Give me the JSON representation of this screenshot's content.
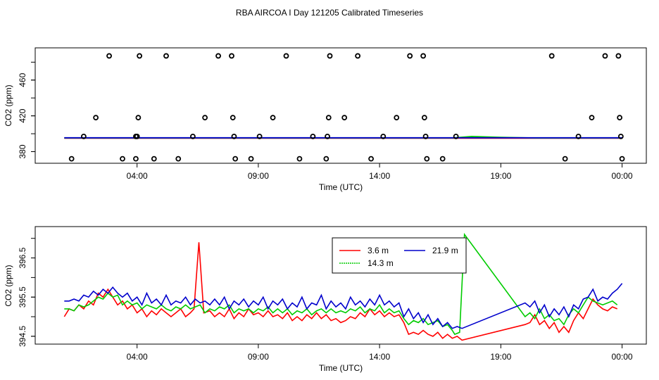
{
  "title": "RBA AIRCOA I  Day 121205  Calibrated Timeseries",
  "chart_data": [
    {
      "type": "scatter",
      "title": "",
      "xlabel": "Time (UTC)",
      "ylabel": "CO2 (ppm)",
      "x_ticks": [
        "04:00",
        "09:00",
        "14:00",
        "19:00",
        "00:00"
      ],
      "y_ticks": [
        380,
        420,
        460
      ],
      "xlim_hours": [
        -0.2,
        25.0
      ],
      "ylim": [
        367,
        496
      ],
      "grid": false,
      "flag_points": [
        {
          "t": 1.3,
          "co2": 372
        },
        {
          "t": 1.8,
          "co2": 397
        },
        {
          "t": 2.3,
          "co2": 418
        },
        {
          "t": 2.85,
          "co2": 487
        },
        {
          "t": 3.4,
          "co2": 372
        },
        {
          "t": 3.95,
          "co2": 397
        },
        {
          "t": 4.7,
          "co2": 372
        },
        {
          "t": 3.95,
          "co2": 372
        },
        {
          "t": 4.0,
          "co2": 397
        },
        {
          "t": 4.05,
          "co2": 418
        },
        {
          "t": 4.1,
          "co2": 487
        },
        {
          "t": 5.2,
          "co2": 487
        },
        {
          "t": 5.7,
          "co2": 372
        },
        {
          "t": 6.3,
          "co2": 397
        },
        {
          "t": 6.8,
          "co2": 418
        },
        {
          "t": 7.35,
          "co2": 487
        },
        {
          "t": 7.9,
          "co2": 487
        },
        {
          "t": 7.95,
          "co2": 418
        },
        {
          "t": 8.0,
          "co2": 397
        },
        {
          "t": 8.05,
          "co2": 372
        },
        {
          "t": 8.7,
          "co2": 372
        },
        {
          "t": 9.05,
          "co2": 397
        },
        {
          "t": 9.6,
          "co2": 418
        },
        {
          "t": 10.15,
          "co2": 487
        },
        {
          "t": 10.7,
          "co2": 372
        },
        {
          "t": 11.25,
          "co2": 397
        },
        {
          "t": 11.8,
          "co2": 372
        },
        {
          "t": 11.85,
          "co2": 397
        },
        {
          "t": 11.9,
          "co2": 418
        },
        {
          "t": 11.95,
          "co2": 487
        },
        {
          "t": 12.55,
          "co2": 418
        },
        {
          "t": 13.1,
          "co2": 487
        },
        {
          "t": 13.65,
          "co2": 372
        },
        {
          "t": 14.15,
          "co2": 397
        },
        {
          "t": 14.7,
          "co2": 418
        },
        {
          "t": 15.25,
          "co2": 487
        },
        {
          "t": 15.8,
          "co2": 487
        },
        {
          "t": 15.85,
          "co2": 418
        },
        {
          "t": 15.9,
          "co2": 397
        },
        {
          "t": 15.95,
          "co2": 372
        },
        {
          "t": 16.6,
          "co2": 372
        },
        {
          "t": 17.15,
          "co2": 397
        },
        {
          "t": 21.1,
          "co2": 487
        },
        {
          "t": 21.65,
          "co2": 372
        },
        {
          "t": 22.2,
          "co2": 397
        },
        {
          "t": 22.75,
          "co2": 418
        },
        {
          "t": 23.3,
          "co2": 487
        },
        {
          "t": 23.85,
          "co2": 487
        },
        {
          "t": 23.9,
          "co2": 418
        },
        {
          "t": 23.95,
          "co2": 397
        },
        {
          "t": 24.0,
          "co2": 372
        }
      ],
      "series": [
        {
          "label_key": "legend.s1",
          "color": "#ff0000",
          "t": [
            1.0,
            24.0
          ],
          "co2": [
            395.1,
            395.1
          ]
        },
        {
          "label_key": "legend.s2",
          "color": "#00cc00",
          "t": [
            1.0,
            17.0,
            17.8,
            19.0,
            20.5,
            24.0
          ],
          "co2": [
            395.3,
            395.3,
            397.0,
            396.0,
            395.2,
            395.3
          ]
        },
        {
          "label_key": "legend.s3",
          "color": "#0000cc",
          "t": [
            1.0,
            24.0
          ],
          "co2": [
            395.5,
            395.5
          ]
        }
      ]
    },
    {
      "type": "line",
      "title": "",
      "xlabel": "Time (UTC)",
      "ylabel": "CO2 (ppm)",
      "x_ticks": [
        "04:00",
        "09:00",
        "14:00",
        "19:00",
        "00:00"
      ],
      "y_ticks": [
        394.5,
        395.5,
        396.5
      ],
      "xlim_hours": [
        -0.2,
        25.0
      ],
      "ylim": [
        394.3,
        397.3
      ],
      "grid": false,
      "legend_position": "top-center",
      "series": [
        {
          "name_key": "legend.s1",
          "color": "#ff0000",
          "t": [
            1.0,
            1.2,
            1.4,
            1.6,
            1.8,
            2.0,
            2.2,
            2.4,
            2.6,
            2.8,
            3.0,
            3.2,
            3.4,
            3.6,
            3.8,
            4.0,
            4.2,
            4.4,
            4.6,
            4.8,
            5.0,
            5.2,
            5.4,
            5.6,
            5.8,
            6.0,
            6.2,
            6.35,
            6.55,
            6.75,
            7.0,
            7.2,
            7.4,
            7.6,
            7.8,
            8.0,
            8.2,
            8.4,
            8.6,
            8.8,
            9.0,
            9.2,
            9.4,
            9.6,
            9.8,
            10.0,
            10.2,
            10.4,
            10.6,
            10.8,
            11.0,
            11.2,
            11.4,
            11.6,
            11.8,
            12.0,
            12.2,
            12.4,
            12.6,
            12.8,
            13.0,
            13.2,
            13.4,
            13.6,
            13.8,
            14.0,
            14.2,
            14.4,
            14.6,
            14.8,
            15.0,
            15.2,
            15.4,
            15.6,
            15.8,
            16.0,
            16.2,
            16.4,
            16.6,
            16.8,
            17.0,
            17.2,
            17.4,
            20.0,
            20.2,
            20.4,
            20.6,
            20.8,
            21.0,
            21.2,
            21.4,
            21.6,
            21.8,
            22.0,
            22.2,
            22.4,
            22.6,
            22.8,
            23.0,
            23.2,
            23.4,
            23.6,
            23.8
          ],
          "co2": [
            395.0,
            395.2,
            395.15,
            395.3,
            395.2,
            395.4,
            395.3,
            395.6,
            395.5,
            395.7,
            395.5,
            395.3,
            395.4,
            395.2,
            395.3,
            395.1,
            395.2,
            395.0,
            395.15,
            395.05,
            395.2,
            395.1,
            395.0,
            395.1,
            395.2,
            395.0,
            395.1,
            395.2,
            396.9,
            395.1,
            395.15,
            395.0,
            395.1,
            395.0,
            395.2,
            394.95,
            395.1,
            395.0,
            395.2,
            395.05,
            395.1,
            395.0,
            395.15,
            395.0,
            395.05,
            394.95,
            395.1,
            394.9,
            395.0,
            394.9,
            395.05,
            394.95,
            395.1,
            394.95,
            395.05,
            394.9,
            394.95,
            394.85,
            394.9,
            395.0,
            394.95,
            395.1,
            395.0,
            395.2,
            395.05,
            395.15,
            395.0,
            395.1,
            395.0,
            395.05,
            394.85,
            394.55,
            394.6,
            394.55,
            394.65,
            394.55,
            394.5,
            394.6,
            394.45,
            394.55,
            394.45,
            394.5,
            394.4,
            394.8,
            394.85,
            395.05,
            394.8,
            394.9,
            394.7,
            394.85,
            394.6,
            394.75,
            394.6,
            394.9,
            395.1,
            394.95,
            395.2,
            395.45,
            395.3,
            395.2,
            395.15,
            395.25,
            395.2
          ]
        },
        {
          "name_key": "legend.s2",
          "color": "#00cc00",
          "t": [
            1.0,
            1.2,
            1.4,
            1.6,
            1.8,
            2.0,
            2.2,
            2.4,
            2.6,
            2.8,
            3.0,
            3.2,
            3.4,
            3.6,
            3.8,
            4.0,
            4.2,
            4.4,
            4.6,
            4.8,
            5.0,
            5.2,
            5.4,
            5.6,
            5.8,
            6.0,
            6.2,
            6.4,
            6.6,
            6.8,
            7.0,
            7.2,
            7.4,
            7.6,
            7.8,
            8.0,
            8.2,
            8.4,
            8.6,
            8.8,
            9.0,
            9.2,
            9.4,
            9.6,
            9.8,
            10.0,
            10.2,
            10.4,
            10.6,
            10.8,
            11.0,
            11.2,
            11.4,
            11.6,
            11.8,
            12.0,
            12.2,
            12.4,
            12.6,
            12.8,
            13.0,
            13.2,
            13.4,
            13.6,
            13.8,
            14.0,
            14.2,
            14.4,
            14.6,
            14.8,
            15.0,
            15.2,
            15.4,
            15.6,
            15.8,
            16.0,
            16.2,
            16.4,
            16.6,
            16.8,
            17.0,
            17.1,
            17.3,
            17.5,
            20.0,
            20.2,
            20.4,
            20.6,
            20.8,
            21.0,
            21.2,
            21.4,
            21.6,
            21.8,
            22.0,
            22.2,
            22.4,
            22.6,
            22.8,
            23.0,
            23.2,
            23.4,
            23.6,
            23.8
          ],
          "co2": [
            395.2,
            395.2,
            395.15,
            395.3,
            395.25,
            395.3,
            395.4,
            395.5,
            395.45,
            395.6,
            395.5,
            395.55,
            395.3,
            395.4,
            395.3,
            395.35,
            395.2,
            395.3,
            395.25,
            395.2,
            395.3,
            395.2,
            395.15,
            395.25,
            395.2,
            395.3,
            395.2,
            395.25,
            395.3,
            395.1,
            395.2,
            395.15,
            395.25,
            395.2,
            395.3,
            395.1,
            395.2,
            395.15,
            395.2,
            395.1,
            395.2,
            395.15,
            395.25,
            395.1,
            395.2,
            395.1,
            395.2,
            395.05,
            395.15,
            395.1,
            395.2,
            395.05,
            395.15,
            395.2,
            395.1,
            395.2,
            395.1,
            395.15,
            395.1,
            395.2,
            395.15,
            395.25,
            395.1,
            395.2,
            395.15,
            395.3,
            395.1,
            395.2,
            395.1,
            395.15,
            394.95,
            394.8,
            394.9,
            394.85,
            394.95,
            394.8,
            394.85,
            394.9,
            394.75,
            394.8,
            394.65,
            394.55,
            394.6,
            397.1,
            395.0,
            395.1,
            394.95,
            395.2,
            394.95,
            395.05,
            394.9,
            394.95,
            394.8,
            395.05,
            395.2,
            395.1,
            395.3,
            395.5,
            395.4,
            395.35,
            395.3,
            395.35,
            395.4,
            395.3
          ]
        },
        {
          "name_key": "legend.s3",
          "color": "#0000cc",
          "t": [
            1.0,
            1.2,
            1.4,
            1.6,
            1.8,
            2.0,
            2.2,
            2.4,
            2.6,
            2.8,
            3.0,
            3.2,
            3.4,
            3.6,
            3.8,
            4.0,
            4.2,
            4.4,
            4.6,
            4.8,
            5.0,
            5.2,
            5.4,
            5.6,
            5.8,
            6.0,
            6.2,
            6.4,
            6.6,
            6.8,
            7.0,
            7.2,
            7.4,
            7.6,
            7.8,
            8.0,
            8.2,
            8.4,
            8.6,
            8.8,
            9.0,
            9.2,
            9.4,
            9.6,
            9.8,
            10.0,
            10.2,
            10.4,
            10.6,
            10.8,
            11.0,
            11.2,
            11.4,
            11.6,
            11.8,
            12.0,
            12.2,
            12.4,
            12.6,
            12.8,
            13.0,
            13.2,
            13.4,
            13.6,
            13.8,
            14.0,
            14.2,
            14.4,
            14.6,
            14.8,
            15.0,
            15.2,
            15.4,
            15.6,
            15.8,
            16.0,
            16.2,
            16.4,
            16.6,
            16.8,
            17.0,
            17.2,
            17.4,
            20.0,
            20.2,
            20.4,
            20.6,
            20.8,
            21.0,
            21.2,
            21.4,
            21.6,
            21.8,
            22.0,
            22.2,
            22.4,
            22.6,
            22.8,
            23.0,
            23.2,
            23.4,
            23.6,
            23.8,
            24.0
          ],
          "co2": [
            395.4,
            395.4,
            395.45,
            395.4,
            395.55,
            395.5,
            395.65,
            395.55,
            395.7,
            395.6,
            395.75,
            395.6,
            395.5,
            395.6,
            395.4,
            395.5,
            395.3,
            395.6,
            395.35,
            395.45,
            395.3,
            395.55,
            395.3,
            395.4,
            395.35,
            395.5,
            395.3,
            395.45,
            395.35,
            395.4,
            395.3,
            395.45,
            395.3,
            395.5,
            395.2,
            395.4,
            395.3,
            395.45,
            395.25,
            395.4,
            395.3,
            395.5,
            395.2,
            395.4,
            395.3,
            395.45,
            395.2,
            395.35,
            395.25,
            395.5,
            395.2,
            395.35,
            395.3,
            395.55,
            395.2,
            395.4,
            395.25,
            395.35,
            395.2,
            395.5,
            395.3,
            395.4,
            395.25,
            395.45,
            395.3,
            395.55,
            395.3,
            395.4,
            395.25,
            395.35,
            395.0,
            395.2,
            394.95,
            395.1,
            394.85,
            395.05,
            394.8,
            394.95,
            394.75,
            394.85,
            394.7,
            394.75,
            394.7,
            395.35,
            395.25,
            395.4,
            395.1,
            395.3,
            395.0,
            395.2,
            395.05,
            395.25,
            395.0,
            395.3,
            395.2,
            395.45,
            395.5,
            395.7,
            395.4,
            395.5,
            395.45,
            395.6,
            395.7,
            395.85
          ]
        }
      ]
    }
  ],
  "legend": {
    "s1": "3.6 m",
    "s2": "14.3 m",
    "s3": "21.9 m"
  }
}
